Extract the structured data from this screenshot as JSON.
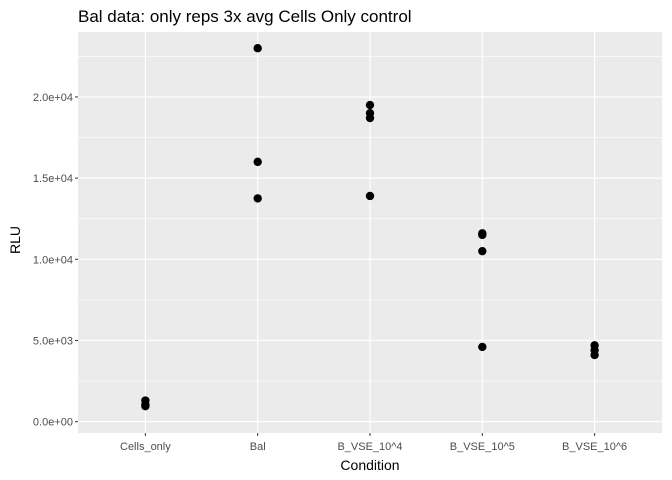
{
  "chart_data": {
    "type": "scatter",
    "title": "Bal data: only reps 3x avg Cells Only control",
    "xlabel": "Condition",
    "ylabel": "RLU",
    "categories": [
      "Cells_only",
      "Bal",
      "B_VSE_10^4",
      "B_VSE_10^5",
      "B_VSE_10^6"
    ],
    "y_ticks": [
      0,
      5000,
      10000,
      15000,
      20000
    ],
    "y_tick_labels": [
      "0.0e+00",
      "5.0e+03",
      "1.0e+04",
      "1.5e+04",
      "2.0e+04"
    ],
    "ylim": [
      -700,
      24000
    ],
    "grid": true,
    "legend": "none",
    "point_color": "#000000",
    "panel_color": "#ebebeb",
    "grid_color": "#ffffff",
    "points": [
      {
        "x": "Cells_only",
        "y": 1300
      },
      {
        "x": "Cells_only",
        "y": 1050
      },
      {
        "x": "Cells_only",
        "y": 950
      },
      {
        "x": "Bal",
        "y": 23000
      },
      {
        "x": "Bal",
        "y": 16000
      },
      {
        "x": "Bal",
        "y": 13750
      },
      {
        "x": "B_VSE_10^4",
        "y": 19500
      },
      {
        "x": "B_VSE_10^4",
        "y": 19000
      },
      {
        "x": "B_VSE_10^4",
        "y": 18700
      },
      {
        "x": "B_VSE_10^4",
        "y": 13900
      },
      {
        "x": "B_VSE_10^5",
        "y": 11600
      },
      {
        "x": "B_VSE_10^5",
        "y": 11500
      },
      {
        "x": "B_VSE_10^5",
        "y": 10500
      },
      {
        "x": "B_VSE_10^5",
        "y": 4600
      },
      {
        "x": "B_VSE_10^6",
        "y": 4700
      },
      {
        "x": "B_VSE_10^6",
        "y": 4400
      },
      {
        "x": "B_VSE_10^6",
        "y": 4100
      }
    ]
  }
}
